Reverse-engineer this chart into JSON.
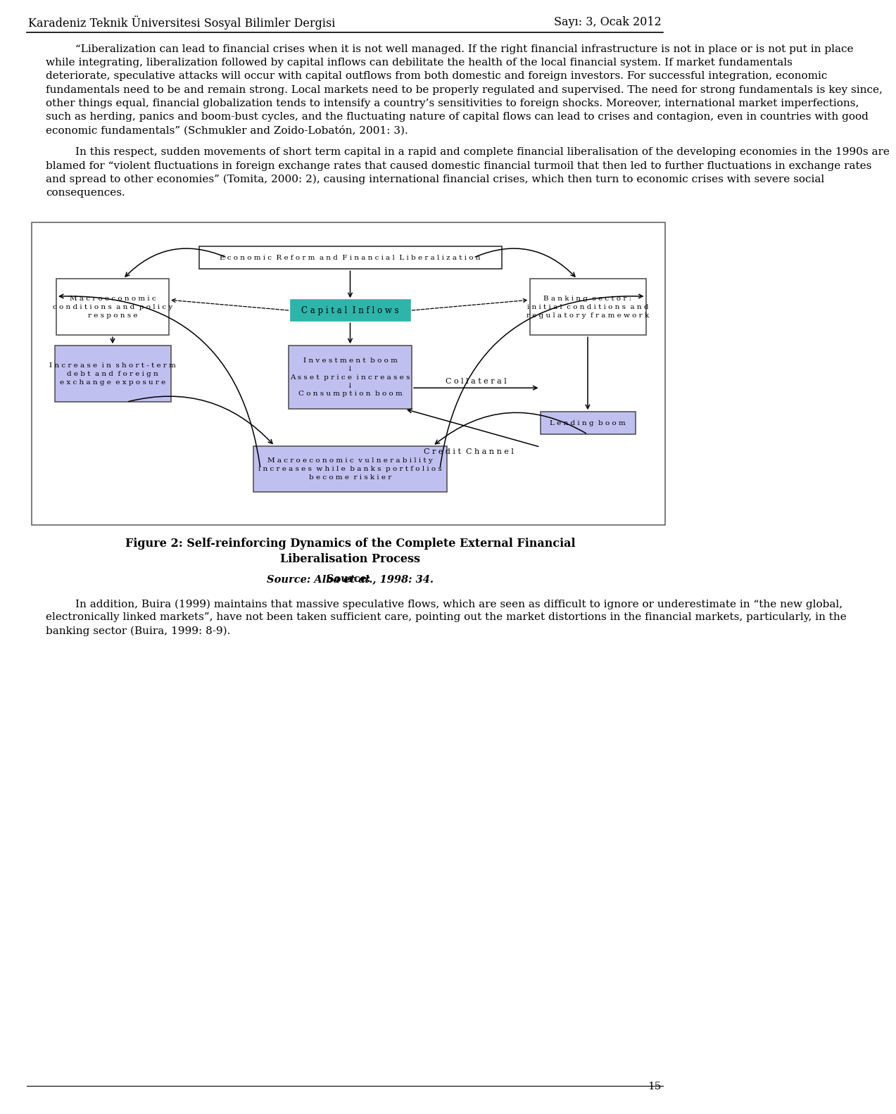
{
  "header_left": "Karadeniz Teknik Üniversitesi Sosyal Bilimler Dergisi",
  "header_right": "Sayı: 3, Ocak 2012",
  "page_number": "15",
  "body_text_1": "“Liberalization can lead to financial crises when it is not well managed. If the right financial infrastructure is not in place or is not put in place while integrating, liberalization followed by capital inflows can debilitate the health of the local financial system. If market fundamentals deteriorate, speculative attacks will occur with capital outflows from both domestic and foreign investors. For successful integration, economic fundamentals need to be and remain strong. Local markets need to be properly regulated and supervised. The need for strong fundamentals is key since, other things equal, financial globalization tends to intensify a country’s sensitivities to foreign shocks. Moreover, international market imperfections, such as herding, panics and boom-bust cycles, and the fluctuating nature of capital flows can lead to crises and contagion, even in countries with good economic fundamentals” (Schmukler and Zoido-Lobatón, 2001: 3).",
  "body_text_2": "In this respect, sudden movements of short term capital in a rapid and complete financial liberalisation of the developing economies in the 1990s are blamed for “violent fluctuations in foreign exchange rates that caused domestic financial turmoil that then led to further fluctuations in exchange rates and spread to other economies” (Tomita, 2000: 2), causing international financial crises, which then turn to economic crises with severe social consequences.",
  "figure_caption_bold": "Figure 2: Self-reinforcing Dynamics of the Complete External Financial\nLiberalisation Process",
  "figure_source_bold": "Source: ",
  "figure_source_italic": "Alba et al",
  "figure_source_end": "., 1998: 34.",
  "body_text_3": "In addition, Buira (1999) maintains that massive speculative flows, which are seen as difficult to ignore or underestimate in “the new global, electronically linked markets”, have not been taken sufficient care, pointing out the market distortions in the financial markets, particularly, in the banking sector (Buira, 1999: 8-9).",
  "box_top": "E c o n o m i c  R e f o r m  a n d  F i n a n c i a l  L i b e r a l i z a t i o n",
  "box_capital": "C a p i t a l  I n f l o w s",
  "box_macro": "M a c r o e c o n o m i c\nc o n d i t i o n s  a n d  p o l i c y\nr e s p o n s e",
  "box_banking": "B a n k i n g  s e c t o r :\ni n i t i a l  c o n d i t i o n s  a n d\nr e g u l a t o r y  f r a m e w o r k",
  "box_middle": "I n v e s t m e n t  b o o m\n↓\nA s s e t  p r i c e  i n c r e a s e s\n↓\nC o n s u m p t i o n  b o o m",
  "box_debt": "I n c r e a s e  i n  s h o r t - t e r m\nd e b t  a n d  f o r e i g n\ne x c h a n g e  e x p o s u r e",
  "box_lending": "L e n d i n g  b o o m",
  "box_bottom": "M a c r o e c o n o m i c  v u l n e r a b i l i t y\ni n c r e a s e s  w h i l e  b a n k s  p o r t f o l i o s\nb e c o m e  r i s k i e r",
  "label_collateral": "C o l l a t e r a l",
  "label_credit": "C r e d i t  C h a n n e l",
  "bg_color": "#ffffff"
}
